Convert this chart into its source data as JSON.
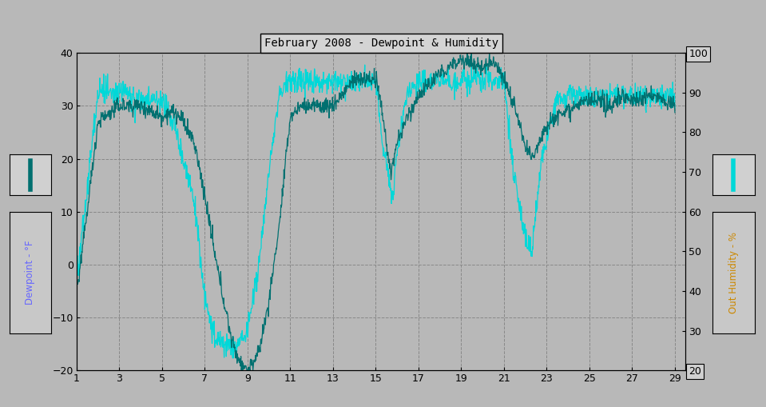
{
  "title": "February 2008 - Dewpoint & Humidity",
  "bg_color": "#b8b8b8",
  "plot_bg_color": "#b8b8b8",
  "dewpoint_color": "#007070",
  "humidity_color": "#00d8d8",
  "ylabel_left": "Dewpoint - °F",
  "ylabel_right": "Out Humidity - %",
  "ylim_left": [
    -20.0,
    40.0
  ],
  "ylim_right": [
    20,
    100
  ],
  "xlim": [
    1,
    29.5
  ],
  "xticks": [
    1,
    3,
    5,
    7,
    9,
    11,
    13,
    15,
    17,
    19,
    21,
    23,
    25,
    27,
    29
  ],
  "yticks_left": [
    -20.0,
    -10.0,
    0.0,
    10.0,
    20.0,
    30.0,
    40.0
  ],
  "yticks_right": [
    20,
    30,
    40,
    50,
    60,
    70,
    80,
    90,
    100
  ],
  "grid_color": "#888888",
  "title_box_color": "#d4d4d4",
  "label_left_color": "#6666ff",
  "label_right_color": "#cc8800"
}
